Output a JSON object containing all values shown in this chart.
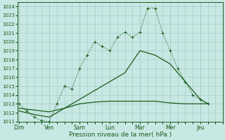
{
  "x_labels": [
    "Dim",
    "Ven",
    "Sam",
    "Lun",
    "Mar",
    "Mer",
    "Jeu"
  ],
  "ylim": [
    1011,
    1024.5
  ],
  "yticks": [
    1011,
    1012,
    1013,
    1014,
    1015,
    1016,
    1017,
    1018,
    1019,
    1020,
    1021,
    1022,
    1023,
    1024
  ],
  "xlabel": "Pression niveau de la mer( hPa )",
  "bg_color": "#c8e8e4",
  "grid_color": "#a8cec8",
  "line_color": "#1a5c1a",
  "series1_x": [
    0,
    0.25,
    0.5,
    0.75,
    1.0,
    1.25,
    1.5,
    1.75,
    2.0,
    2.25,
    2.5,
    2.75,
    3.0,
    3.25,
    3.5,
    3.75,
    4.0,
    4.25,
    4.5,
    4.75,
    5.0,
    5.25,
    5.5,
    5.75,
    6.0,
    6.25
  ],
  "series1_y": [
    1013.0,
    1012.2,
    1011.5,
    1011.1,
    1011.0,
    1013.0,
    1015.0,
    1014.7,
    1017.0,
    1018.5,
    1020.0,
    1019.5,
    1019.0,
    1020.5,
    1021.1,
    1020.5,
    1021.1,
    1023.8,
    1023.8,
    1021.0,
    1019.0,
    1017.0,
    1015.5,
    1014.0,
    1013.5,
    1013.0
  ],
  "series2_x": [
    0,
    0.5,
    1.0,
    1.5,
    2.0,
    2.5,
    3.0,
    3.5,
    4.0,
    4.5,
    5.0,
    5.5,
    6.0,
    6.25
  ],
  "series2_y": [
    1012.5,
    1012.3,
    1012.1,
    1012.5,
    1013.0,
    1013.2,
    1013.3,
    1013.3,
    1013.3,
    1013.3,
    1013.1,
    1013.0,
    1013.0,
    1013.0
  ],
  "series3_x": [
    0,
    0.5,
    1.0,
    1.5,
    2.0,
    2.5,
    3.0,
    3.5,
    4.0,
    4.5,
    5.0,
    5.5,
    6.0,
    6.25
  ],
  "series3_y": [
    1012.2,
    1011.8,
    1011.5,
    1012.5,
    1013.5,
    1014.5,
    1015.5,
    1016.5,
    1019.0,
    1018.5,
    1017.5,
    1015.5,
    1013.5,
    1013.0
  ],
  "xlim_left": -0.05,
  "xlim_right": 6.5
}
